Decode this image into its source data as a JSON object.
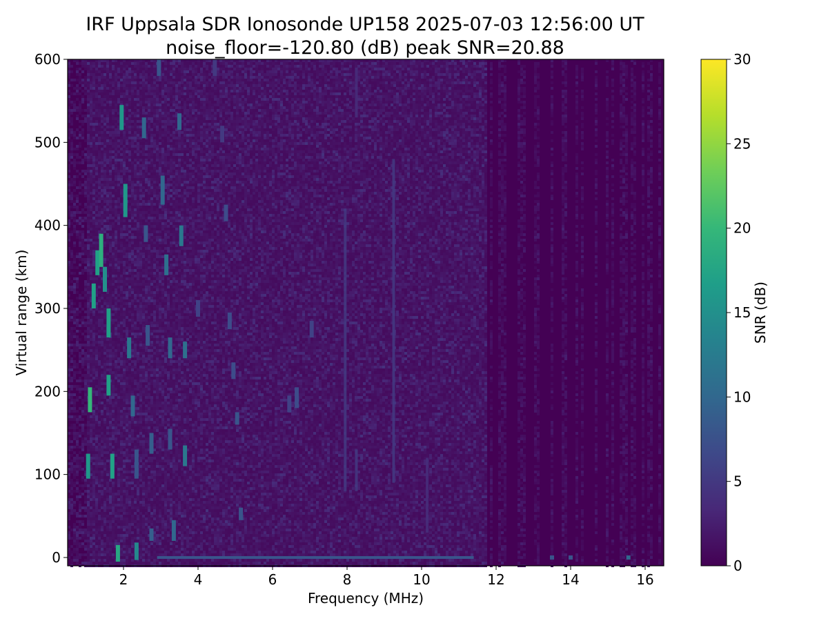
{
  "chart_data": {
    "type": "heatmap",
    "title": "IRF Uppsala SDR Ionosonde UP158 2025-07-03 12:56:00  UT",
    "subtitle": "noise_floor=-120.80 (dB) peak SNR=20.88",
    "xlabel": "Frequency (MHz)",
    "ylabel": "Virtual range (km)",
    "xlim": [
      0.5,
      16.5
    ],
    "ylim": [
      -10,
      600
    ],
    "x_ticks": [
      2,
      4,
      6,
      8,
      10,
      12,
      14,
      16
    ],
    "x_tick_labels": [
      "2",
      "4",
      "6",
      "8",
      "10",
      "12",
      "14",
      "16"
    ],
    "y_ticks": [
      0,
      100,
      200,
      300,
      400,
      500,
      600
    ],
    "y_tick_labels": [
      "0",
      "100",
      "200",
      "300",
      "400",
      "500",
      "600"
    ],
    "colorbar": {
      "label": "SNR (dB)",
      "range": [
        0,
        30
      ],
      "ticks": [
        0,
        5,
        10,
        15,
        20,
        25,
        30
      ],
      "tick_labels": [
        "0",
        "5",
        "10",
        "15",
        "20",
        "25",
        "30"
      ],
      "colormap": [
        "#440154",
        "#482878",
        "#3e4989",
        "#31688e",
        "#26828e",
        "#1f9e89",
        "#35b779",
        "#6ece58",
        "#b5de2b",
        "#fde725"
      ]
    },
    "data_range_x": [
      0.5,
      16.4
    ],
    "noise_background_snr": 0.8,
    "echoes": [
      {
        "x": 1.05,
        "y0": 95,
        "y1": 125,
        "snr": 16
      },
      {
        "x": 1.1,
        "y0": 175,
        "y1": 205,
        "snr": 20
      },
      {
        "x": 1.2,
        "y0": 300,
        "y1": 330,
        "snr": 17
      },
      {
        "x": 1.3,
        "y0": 340,
        "y1": 370,
        "snr": 17
      },
      {
        "x": 1.4,
        "y0": 350,
        "y1": 390,
        "snr": 19
      },
      {
        "x": 1.5,
        "y0": 320,
        "y1": 350,
        "snr": 15
      },
      {
        "x": 1.6,
        "y0": 265,
        "y1": 300,
        "snr": 17
      },
      {
        "x": 1.6,
        "y0": 195,
        "y1": 220,
        "snr": 17
      },
      {
        "x": 1.7,
        "y0": 95,
        "y1": 125,
        "snr": 17
      },
      {
        "x": 1.85,
        "y0": -5,
        "y1": 15,
        "snr": 18
      },
      {
        "x": 1.95,
        "y0": 515,
        "y1": 545,
        "snr": 16
      },
      {
        "x": 2.05,
        "y0": 410,
        "y1": 450,
        "snr": 16
      },
      {
        "x": 2.15,
        "y0": 240,
        "y1": 265,
        "snr": 12
      },
      {
        "x": 2.25,
        "y0": 170,
        "y1": 195,
        "snr": 10
      },
      {
        "x": 2.35,
        "y0": -3,
        "y1": 18,
        "snr": 14
      },
      {
        "x": 2.35,
        "y0": 95,
        "y1": 130,
        "snr": 8
      },
      {
        "x": 2.55,
        "y0": 505,
        "y1": 530,
        "snr": 10
      },
      {
        "x": 2.6,
        "y0": 380,
        "y1": 400,
        "snr": 8
      },
      {
        "x": 2.65,
        "y0": 255,
        "y1": 280,
        "snr": 8
      },
      {
        "x": 2.75,
        "y0": 125,
        "y1": 150,
        "snr": 9
      },
      {
        "x": 2.75,
        "y0": 20,
        "y1": 35,
        "snr": 9
      },
      {
        "x": 2.95,
        "y0": 580,
        "y1": 600,
        "snr": 8
      },
      {
        "x": 3.05,
        "y0": 425,
        "y1": 460,
        "snr": 10
      },
      {
        "x": 3.15,
        "y0": 340,
        "y1": 365,
        "snr": 11
      },
      {
        "x": 3.25,
        "y0": 240,
        "y1": 265,
        "snr": 10
      },
      {
        "x": 3.25,
        "y0": 130,
        "y1": 155,
        "snr": 8
      },
      {
        "x": 3.35,
        "y0": 20,
        "y1": 45,
        "snr": 10
      },
      {
        "x": 3.5,
        "y0": 515,
        "y1": 535,
        "snr": 10
      },
      {
        "x": 3.55,
        "y0": 375,
        "y1": 400,
        "snr": 12
      },
      {
        "x": 3.65,
        "y0": 240,
        "y1": 260,
        "snr": 11
      },
      {
        "x": 3.65,
        "y0": 110,
        "y1": 135,
        "snr": 12
      },
      {
        "x": 4.0,
        "y0": 290,
        "y1": 310,
        "snr": 6
      },
      {
        "x": 4.45,
        "y0": 580,
        "y1": 600,
        "snr": 5
      },
      {
        "x": 4.65,
        "y0": 500,
        "y1": 520,
        "snr": 5
      },
      {
        "x": 4.75,
        "y0": 405,
        "y1": 425,
        "snr": 7
      },
      {
        "x": 4.85,
        "y0": 275,
        "y1": 295,
        "snr": 7
      },
      {
        "x": 4.95,
        "y0": 215,
        "y1": 235,
        "snr": 7
      },
      {
        "x": 5.05,
        "y0": 160,
        "y1": 175,
        "snr": 8
      },
      {
        "x": 5.15,
        "y0": 45,
        "y1": 60,
        "snr": 8
      },
      {
        "x": 6.45,
        "y0": 175,
        "y1": 195,
        "snr": 6
      },
      {
        "x": 6.65,
        "y0": 180,
        "y1": 205,
        "snr": 7
      },
      {
        "x": 7.05,
        "y0": 265,
        "y1": 285,
        "snr": 6
      }
    ],
    "vertical_streaks": [
      {
        "x": 7.95,
        "y0": 80,
        "y1": 420,
        "snr": 5
      },
      {
        "x": 8.25,
        "y0": 530,
        "y1": 590,
        "snr": 4
      },
      {
        "x": 8.25,
        "y0": 80,
        "y1": 130,
        "snr": 5
      },
      {
        "x": 9.25,
        "y0": 90,
        "y1": 480,
        "snr": 5
      },
      {
        "x": 10.15,
        "y0": 30,
        "y1": 120,
        "snr": 4
      }
    ],
    "baseline_segment": {
      "x0": 2.9,
      "x1": 11.4,
      "y": 0,
      "snr": 8
    },
    "baseline_points": [
      {
        "x": 13.5,
        "snr": 8
      },
      {
        "x": 14.0,
        "snr": 8
      },
      {
        "x": 15.55,
        "snr": 10
      }
    ]
  }
}
